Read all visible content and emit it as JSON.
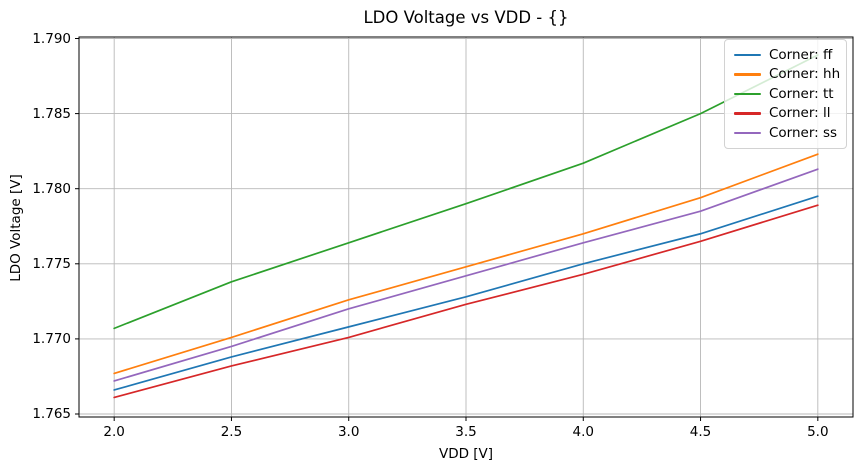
{
  "chart_data": {
    "type": "line",
    "title": "LDO Voltage vs VDD - {}",
    "xlabel": "VDD [V]",
    "ylabel": "LDO Voltage [V]",
    "x": [
      2.0,
      2.5,
      3.0,
      3.5,
      4.0,
      4.5,
      5.0
    ],
    "series": [
      {
        "name": "Corner: ff",
        "key": "ff",
        "color": "#1f77b4",
        "values": [
          1.7666,
          1.7688,
          1.7708,
          1.7728,
          1.775,
          1.777,
          1.7795
        ]
      },
      {
        "name": "Corner: hh",
        "key": "hh",
        "color": "#ff7f0e",
        "values": [
          1.7677,
          1.7701,
          1.7726,
          1.7748,
          1.777,
          1.7794,
          1.7823
        ]
      },
      {
        "name": "Corner: tt",
        "key": "tt",
        "color": "#2ca02c",
        "values": [
          1.7707,
          1.7738,
          1.7764,
          1.779,
          1.7817,
          1.785,
          1.7889
        ]
      },
      {
        "name": "Corner: ll",
        "key": "ll",
        "color": "#d62728",
        "values": [
          1.7661,
          1.7682,
          1.7701,
          1.7723,
          1.7743,
          1.7765,
          1.7789
        ]
      },
      {
        "name": "Corner: ss",
        "key": "ss",
        "color": "#9467bd",
        "values": [
          1.7672,
          1.7695,
          1.772,
          1.7742,
          1.7764,
          1.7785,
          1.7813
        ]
      }
    ],
    "xticks": [
      2.0,
      2.5,
      3.0,
      3.5,
      4.0,
      4.5,
      5.0
    ],
    "xtick_labels": [
      "2.0",
      "2.5",
      "3.0",
      "3.5",
      "4.0",
      "4.5",
      "5.0"
    ],
    "yticks": [
      1.765,
      1.77,
      1.775,
      1.78,
      1.785,
      1.79
    ],
    "ytick_labels": [
      "1.765",
      "1.770",
      "1.775",
      "1.780",
      "1.785",
      "1.790"
    ],
    "xlim": [
      1.85,
      5.15
    ],
    "ylim": [
      1.7648,
      1.7901
    ],
    "grid": true,
    "grid_color": "#b8b8b8",
    "spine_color": "#000000",
    "legend_position": "upper right",
    "legend_labels": [
      "Corner: ff",
      "Corner: hh",
      "Corner: tt",
      "Corner: ll",
      "Corner: ss"
    ]
  }
}
